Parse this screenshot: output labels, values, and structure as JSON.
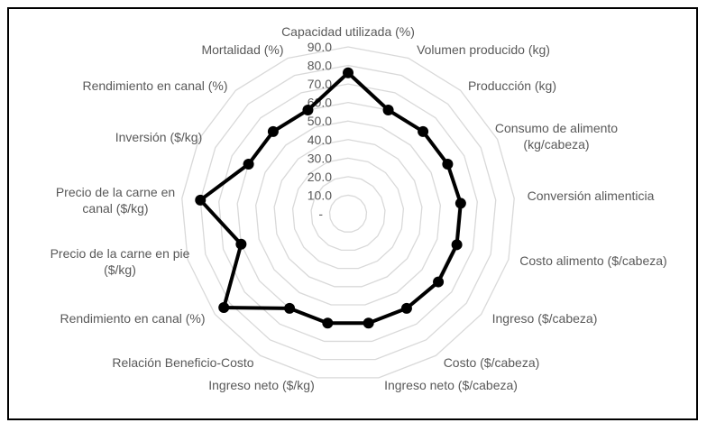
{
  "chart_data": {
    "type": "radar",
    "title": "",
    "categories": [
      [
        "Capacidad utilizada (%)"
      ],
      [
        "Volumen producido (kg)"
      ],
      [
        "Producción (kg)"
      ],
      [
        "Consumo de alimento",
        "(kg/cabeza)"
      ],
      [
        "Conversión alimenticia"
      ],
      [
        "Costo alimento ($/cabeza)"
      ],
      [
        "Ingreso ($/cabeza)"
      ],
      [
        "Costo ($/cabeza)"
      ],
      [
        "Ingreso neto ($/cabeza)"
      ],
      [
        "Ingreso neto ($/kg)"
      ],
      [
        "Relación Beneficio-Costo"
      ],
      [
        "Rendimiento en canal (%)"
      ],
      [
        "Precio de la carne en pie",
        "($/kg)"
      ],
      [
        "Precio de la carne en",
        "canal ($/kg)"
      ],
      [
        "Inversión ($/kg)"
      ],
      [
        "Rendimiento en canal (%)"
      ],
      [
        "Mortalidad (%)"
      ]
    ],
    "series": [
      {
        "name": "",
        "values": [
          76,
          60,
          60,
          60,
          61,
          61,
          61,
          60,
          60,
          60,
          60,
          84,
          60,
          80,
          60,
          60,
          60
        ],
        "color": "#000000"
      }
    ],
    "rlim": [
      0,
      90
    ],
    "tick_labels": [
      "-",
      "10.0",
      "20.0",
      "30.0",
      "40.0",
      "50.0",
      "60.0",
      "70.0",
      "80.0",
      "90.0"
    ],
    "grid": true,
    "grid_color": "#d9d9d9",
    "legend": "none"
  }
}
